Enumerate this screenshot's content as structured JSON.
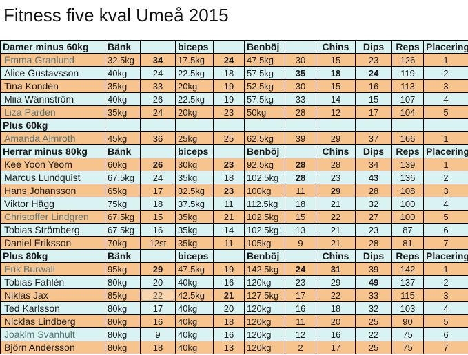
{
  "title": "Fitness five kval Umeå 2015",
  "colors": {
    "row_orange": "#f8c48e",
    "row_cyan": "#d9f3f3",
    "grid": "#000000",
    "muted_name_text": "#5b7474"
  },
  "header_labels": [
    "Bänk",
    "",
    "biceps",
    "",
    "Benböj",
    "",
    "Chins",
    "Dips",
    "Reps",
    "Placering"
  ],
  "sections": [
    {
      "label": "Damer minus 60kg",
      "show_columns": true,
      "rows": [
        {
          "name": "Emma Granlund",
          "muted": true,
          "cells": [
            {
              "v": "32.5kg"
            },
            {
              "v": "34",
              "b": true
            },
            {
              "v": "17.5kg"
            },
            {
              "v": "24",
              "b": true
            },
            {
              "v": "47.5kg"
            },
            {
              "v": "30"
            },
            {
              "v": "15"
            },
            {
              "v": "23"
            },
            {
              "v": "126"
            },
            {
              "v": "1"
            }
          ]
        },
        {
          "name": "Alice Gustavsson",
          "cells": [
            {
              "v": "40kg"
            },
            {
              "v": "24"
            },
            {
              "v": "22.5kg"
            },
            {
              "v": "18"
            },
            {
              "v": "57.5kg"
            },
            {
              "v": "35",
              "b": true
            },
            {
              "v": "18",
              "b": true
            },
            {
              "v": "24",
              "b": true
            },
            {
              "v": "119"
            },
            {
              "v": "2"
            }
          ]
        },
        {
          "name": "Tina Kondén",
          "cells": [
            {
              "v": "35kg"
            },
            {
              "v": "33"
            },
            {
              "v": "20kg"
            },
            {
              "v": "19"
            },
            {
              "v": "52.5kg"
            },
            {
              "v": "30"
            },
            {
              "v": "15"
            },
            {
              "v": "16"
            },
            {
              "v": "113"
            },
            {
              "v": "3"
            }
          ]
        },
        {
          "name": "Miia Wännström",
          "cells": [
            {
              "v": "40kg"
            },
            {
              "v": "26"
            },
            {
              "v": "22.5kg"
            },
            {
              "v": "19"
            },
            {
              "v": "57.5kg"
            },
            {
              "v": "33"
            },
            {
              "v": "14"
            },
            {
              "v": "15"
            },
            {
              "v": "107"
            },
            {
              "v": "4"
            }
          ]
        },
        {
          "name": "Liza Parden",
          "muted": true,
          "cells": [
            {
              "v": "35kg"
            },
            {
              "v": "24"
            },
            {
              "v": "20kg"
            },
            {
              "v": "23"
            },
            {
              "v": "50kg"
            },
            {
              "v": "28"
            },
            {
              "v": "12"
            },
            {
              "v": "17"
            },
            {
              "v": "104"
            },
            {
              "v": "5"
            }
          ]
        }
      ]
    },
    {
      "label": "Plus 60kg",
      "show_columns": false,
      "rows": [
        {
          "name": "Amanda Almroth",
          "muted": true,
          "cells": [
            {
              "v": "45kg"
            },
            {
              "v": "36"
            },
            {
              "v": "25kg"
            },
            {
              "v": "25"
            },
            {
              "v": "62.5kg"
            },
            {
              "v": "39"
            },
            {
              "v": "29"
            },
            {
              "v": "37"
            },
            {
              "v": "166"
            },
            {
              "v": "1"
            }
          ]
        }
      ]
    },
    {
      "label": "Herrar minus 80kg",
      "show_columns": true,
      "rows": [
        {
          "name": "Kee Yoon Yeom",
          "cells": [
            {
              "v": "60kg"
            },
            {
              "v": "26",
              "b": true
            },
            {
              "v": "30kg"
            },
            {
              "v": "23",
              "b": true
            },
            {
              "v": "92.5kg"
            },
            {
              "v": "28",
              "b": true
            },
            {
              "v": "28"
            },
            {
              "v": "34"
            },
            {
              "v": "139"
            },
            {
              "v": "1"
            }
          ]
        },
        {
          "name": "Marcus Lundquist",
          "cells": [
            {
              "v": "67.5kg"
            },
            {
              "v": "24"
            },
            {
              "v": "35kg"
            },
            {
              "v": "18"
            },
            {
              "v": "102.5kg"
            },
            {
              "v": "28",
              "b": true
            },
            {
              "v": "23"
            },
            {
              "v": "43",
              "b": true
            },
            {
              "v": "136"
            },
            {
              "v": "2"
            }
          ]
        },
        {
          "name": "Hans Johansson",
          "cells": [
            {
              "v": "65kg"
            },
            {
              "v": "17"
            },
            {
              "v": "32.5kg"
            },
            {
              "v": "23",
              "b": true
            },
            {
              "v": "100kg"
            },
            {
              "v": "11"
            },
            {
              "v": "29",
              "b": true
            },
            {
              "v": "28"
            },
            {
              "v": "108"
            },
            {
              "v": "3"
            }
          ]
        },
        {
          "name": "Viktor Hägg",
          "cells": [
            {
              "v": "75kg"
            },
            {
              "v": "18"
            },
            {
              "v": "37.5kg"
            },
            {
              "v": "11"
            },
            {
              "v": "112.5kg"
            },
            {
              "v": "18"
            },
            {
              "v": "21"
            },
            {
              "v": "32"
            },
            {
              "v": "100"
            },
            {
              "v": "4"
            }
          ]
        },
        {
          "name": "Christoffer Lindgren",
          "muted": true,
          "cells": [
            {
              "v": "67.5kg"
            },
            {
              "v": "15"
            },
            {
              "v": "35kg"
            },
            {
              "v": "21"
            },
            {
              "v": "102.5kg"
            },
            {
              "v": "15"
            },
            {
              "v": "22"
            },
            {
              "v": "27"
            },
            {
              "v": "100"
            },
            {
              "v": "5"
            }
          ]
        },
        {
          "name": "Tobias Strömberg",
          "cells": [
            {
              "v": "67.5kg"
            },
            {
              "v": "16"
            },
            {
              "v": "35kg"
            },
            {
              "v": "14"
            },
            {
              "v": "102.5kg"
            },
            {
              "v": "13"
            },
            {
              "v": "21"
            },
            {
              "v": "23"
            },
            {
              "v": "87"
            },
            {
              "v": "6"
            }
          ]
        },
        {
          "name": "Daniel Eriksson",
          "cells": [
            {
              "v": "70kg"
            },
            {
              "v": "12st"
            },
            {
              "v": "35kg"
            },
            {
              "v": "11"
            },
            {
              "v": "105kg"
            },
            {
              "v": "9"
            },
            {
              "v": "21"
            },
            {
              "v": "28"
            },
            {
              "v": "81"
            },
            {
              "v": "7"
            }
          ]
        }
      ]
    },
    {
      "label": "Plus 80kg",
      "show_columns": true,
      "rows": [
        {
          "name": "Erik Burwall",
          "muted": true,
          "cells": [
            {
              "v": "95kg"
            },
            {
              "v": "29",
              "b": true
            },
            {
              "v": "47.5kg"
            },
            {
              "v": "19"
            },
            {
              "v": "142.5kg"
            },
            {
              "v": "24",
              "b": true
            },
            {
              "v": "31",
              "b": true
            },
            {
              "v": "39"
            },
            {
              "v": "142"
            },
            {
              "v": "1"
            }
          ]
        },
        {
          "name": "Tobias Fahlén",
          "cells": [
            {
              "v": "80kg"
            },
            {
              "v": "20"
            },
            {
              "v": "40kg"
            },
            {
              "v": "16"
            },
            {
              "v": "120kg"
            },
            {
              "v": "23"
            },
            {
              "v": "29"
            },
            {
              "v": "49",
              "b": true
            },
            {
              "v": "137"
            },
            {
              "v": "2"
            }
          ]
        },
        {
          "name": "Niklas Jax",
          "cells": [
            {
              "v": "85kg"
            },
            {
              "v": "22",
              "sel": true
            },
            {
              "v": "42.5kg"
            },
            {
              "v": "21",
              "b": true
            },
            {
              "v": "127.5kg"
            },
            {
              "v": "17"
            },
            {
              "v": "22"
            },
            {
              "v": "33"
            },
            {
              "v": "115"
            },
            {
              "v": "3"
            }
          ]
        },
        {
          "name": "Ted Karlsson",
          "cells": [
            {
              "v": "80kg"
            },
            {
              "v": "17"
            },
            {
              "v": "40kg"
            },
            {
              "v": "20"
            },
            {
              "v": "120kg"
            },
            {
              "v": "16"
            },
            {
              "v": "18"
            },
            {
              "v": "32"
            },
            {
              "v": "103"
            },
            {
              "v": "4"
            }
          ]
        },
        {
          "name": "Nicklas Lindberg",
          "cells": [
            {
              "v": "80kg"
            },
            {
              "v": "16"
            },
            {
              "v": "40kg"
            },
            {
              "v": "18"
            },
            {
              "v": "120kg"
            },
            {
              "v": "11"
            },
            {
              "v": "20"
            },
            {
              "v": "25"
            },
            {
              "v": "90"
            },
            {
              "v": "5"
            }
          ]
        },
        {
          "name": "Joakim Svanhult",
          "muted": true,
          "cells": [
            {
              "v": "80kg"
            },
            {
              "v": "9"
            },
            {
              "v": "40kg"
            },
            {
              "v": "16"
            },
            {
              "v": "120kg"
            },
            {
              "v": "12"
            },
            {
              "v": "16"
            },
            {
              "v": "22"
            },
            {
              "v": "75"
            },
            {
              "v": "6"
            }
          ]
        },
        {
          "name": "Björn Andersson",
          "cells": [
            {
              "v": "80kg"
            },
            {
              "v": "18"
            },
            {
              "v": "40kg"
            },
            {
              "v": "13"
            },
            {
              "v": "120kg"
            },
            {
              "v": "2"
            },
            {
              "v": "17"
            },
            {
              "v": "25"
            },
            {
              "v": "75"
            },
            {
              "v": "7"
            }
          ]
        }
      ]
    }
  ]
}
